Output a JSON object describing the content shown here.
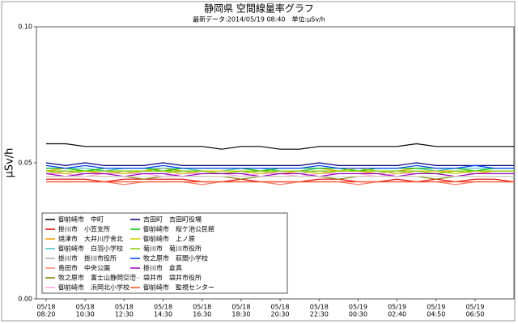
{
  "chart_data": {
    "type": "line",
    "title": "静岡県 空間線量率グラフ",
    "subtitle": "最新データ:2014/05/19 08:40　単位:μSv/h",
    "y_label": "μSv/h",
    "ylim": [
      0,
      0.1
    ],
    "yticks": [
      {
        "value": 0,
        "label": "0.00"
      },
      {
        "value": 0.05,
        "label": "0.05"
      },
      {
        "value": 0.1,
        "label": "0.10"
      }
    ],
    "categories": [
      [
        "05/18",
        "08:20"
      ],
      null,
      [
        "05/18",
        "10:30"
      ],
      null,
      [
        "05/18",
        "12:30"
      ],
      null,
      [
        "05/18",
        "14:30"
      ],
      null,
      [
        "05/18",
        "16:30"
      ],
      null,
      [
        "05/18",
        "18:30"
      ],
      null,
      [
        "05/18",
        "20:30"
      ],
      null,
      [
        "05/18",
        "22:30"
      ],
      null,
      [
        "05/19",
        "00:30"
      ],
      null,
      [
        "05/19",
        "02:40"
      ],
      null,
      [
        "05/19",
        "04:50"
      ],
      null,
      [
        "05/19",
        "06:50"
      ],
      null,
      null
    ],
    "series": [
      {
        "name": "御前崎市　中町",
        "color": "#000000",
        "values": [
          0.057,
          0.057,
          0.056,
          0.056,
          0.056,
          0.056,
          0.056,
          0.056,
          0.056,
          0.055,
          0.056,
          0.056,
          0.055,
          0.055,
          0.056,
          0.056,
          0.056,
          0.056,
          0.056,
          0.057,
          0.056,
          0.056,
          0.056,
          0.056,
          0.056
        ]
      },
      {
        "name": "掛川市　小笠支所",
        "color": "#e00000",
        "values": [
          0.044,
          0.044,
          0.044,
          0.043,
          0.044,
          0.044,
          0.044,
          0.044,
          0.043,
          0.043,
          0.044,
          0.043,
          0.043,
          0.043,
          0.044,
          0.044,
          0.043,
          0.043,
          0.044,
          0.043,
          0.044,
          0.043,
          0.044,
          0.044,
          0.043
        ]
      },
      {
        "name": "焼津市　大井川庁舎北",
        "color": "#f0a000",
        "values": [
          0.047,
          0.048,
          0.047,
          0.046,
          0.047,
          0.047,
          0.048,
          0.047,
          0.047,
          0.046,
          0.047,
          0.047,
          0.046,
          0.047,
          0.048,
          0.047,
          0.047,
          0.046,
          0.047,
          0.048,
          0.047,
          0.047,
          0.046,
          0.047,
          0.047
        ]
      },
      {
        "name": "御前崎市　白羽小学校",
        "color": "#40c0c0",
        "values": [
          0.048,
          0.048,
          0.048,
          0.047,
          0.048,
          0.048,
          0.048,
          0.048,
          0.047,
          0.047,
          0.048,
          0.048,
          0.047,
          0.047,
          0.048,
          0.048,
          0.047,
          0.048,
          0.048,
          0.048,
          0.047,
          0.048,
          0.048,
          0.048,
          0.048
        ]
      },
      {
        "name": "掛川市　掛川市役所",
        "color": "#b0b0b0",
        "values": [
          0.046,
          0.047,
          0.046,
          0.046,
          0.047,
          0.046,
          0.046,
          0.047,
          0.046,
          0.046,
          0.046,
          0.047,
          0.046,
          0.046,
          0.047,
          0.046,
          0.046,
          0.046,
          0.047,
          0.046,
          0.046,
          0.047,
          0.046,
          0.046,
          0.046
        ]
      },
      {
        "name": "島田市　中央公園",
        "color": "#f08070",
        "values": [
          0.043,
          0.043,
          0.043,
          0.043,
          0.042,
          0.043,
          0.043,
          0.043,
          0.042,
          0.043,
          0.043,
          0.043,
          0.042,
          0.043,
          0.043,
          0.043,
          0.042,
          0.043,
          0.043,
          0.043,
          0.043,
          0.042,
          0.043,
          0.043,
          0.043
        ]
      },
      {
        "name": "牧之原市　富士山静岡空港",
        "color": "#808000",
        "values": [
          0.045,
          0.045,
          0.045,
          0.045,
          0.045,
          0.044,
          0.045,
          0.045,
          0.045,
          0.045,
          0.044,
          0.045,
          0.045,
          0.045,
          0.045,
          0.044,
          0.045,
          0.045,
          0.045,
          0.045,
          0.044,
          0.045,
          0.045,
          0.045,
          0.045
        ]
      },
      {
        "name": "御前崎市　浜岡北小学校",
        "color": "#ffa0e0",
        "values": [
          0.046,
          0.046,
          0.045,
          0.046,
          0.046,
          0.046,
          0.045,
          0.046,
          0.046,
          0.046,
          0.045,
          0.046,
          0.046,
          0.045,
          0.046,
          0.046,
          0.046,
          0.045,
          0.046,
          0.046,
          0.046,
          0.045,
          0.046,
          0.046,
          0.046
        ]
      },
      {
        "name": "吉田町　吉田町役場",
        "color": "#000080",
        "values": [
          0.05,
          0.049,
          0.05,
          0.049,
          0.049,
          0.049,
          0.05,
          0.049,
          0.049,
          0.049,
          0.049,
          0.049,
          0.049,
          0.049,
          0.05,
          0.049,
          0.049,
          0.049,
          0.049,
          0.05,
          0.049,
          0.049,
          0.049,
          0.049,
          0.049
        ]
      },
      {
        "name": "御前崎市　桜ケ池公民館",
        "color": "#00c000",
        "values": [
          0.048,
          0.048,
          0.047,
          0.048,
          0.048,
          0.048,
          0.047,
          0.048,
          0.048,
          0.048,
          0.048,
          0.047,
          0.048,
          0.048,
          0.048,
          0.048,
          0.047,
          0.048,
          0.048,
          0.048,
          0.048,
          0.048,
          0.047,
          0.048,
          0.048
        ]
      },
      {
        "name": "御前崎市　上ノ原",
        "color": "#d0d000",
        "values": [
          0.047,
          0.046,
          0.047,
          0.047,
          0.046,
          0.047,
          0.047,
          0.046,
          0.047,
          0.047,
          0.047,
          0.046,
          0.047,
          0.047,
          0.046,
          0.047,
          0.048,
          0.047,
          0.046,
          0.047,
          0.047,
          0.046,
          0.047,
          0.047,
          0.047
        ]
      },
      {
        "name": "菊川市　菊川市役所",
        "color": "#80d000",
        "values": [
          0.047,
          0.047,
          0.047,
          0.047,
          0.047,
          0.047,
          0.047,
          0.047,
          0.047,
          0.046,
          0.047,
          0.047,
          0.047,
          0.047,
          0.047,
          0.047,
          0.047,
          0.047,
          0.047,
          0.047,
          0.046,
          0.047,
          0.047,
          0.047,
          0.047
        ]
      },
      {
        "name": "牧之原市　萩間小学校",
        "color": "#0040ff",
        "values": [
          0.049,
          0.048,
          0.049,
          0.048,
          0.048,
          0.048,
          0.049,
          0.048,
          0.048,
          0.048,
          0.048,
          0.048,
          0.048,
          0.048,
          0.049,
          0.048,
          0.048,
          0.048,
          0.048,
          0.049,
          0.048,
          0.048,
          0.049,
          0.048,
          0.048
        ]
      },
      {
        "name": "掛川市　倉真",
        "color": "#a000c0",
        "values": [
          0.046,
          0.045,
          0.046,
          0.046,
          0.045,
          0.046,
          0.046,
          0.045,
          0.046,
          0.046,
          0.046,
          0.045,
          0.046,
          0.046,
          0.045,
          0.046,
          0.046,
          0.046,
          0.045,
          0.046,
          0.046,
          0.045,
          0.046,
          0.046,
          0.046
        ]
      },
      {
        "name": "袋井市　袋井市役所",
        "color": "#d8d8d8",
        "values": [
          0.045,
          0.045,
          0.045,
          0.045,
          0.045,
          0.045,
          0.045,
          0.045,
          0.045,
          0.045,
          0.045,
          0.045,
          0.045,
          0.045,
          0.045,
          0.045,
          0.045,
          0.045,
          0.045,
          0.045,
          0.045,
          0.045,
          0.045,
          0.045,
          0.045
        ]
      },
      {
        "name": "御前崎市　監視センター",
        "color": "#ff5020",
        "values": [
          0.043,
          0.043,
          0.043,
          0.043,
          0.043,
          0.043,
          0.043,
          0.043,
          0.043,
          0.043,
          0.043,
          0.043,
          0.043,
          0.043,
          0.043,
          0.043,
          0.043,
          0.043,
          0.043,
          0.043,
          0.043,
          0.043,
          0.043,
          0.043,
          0.043
        ]
      }
    ]
  }
}
